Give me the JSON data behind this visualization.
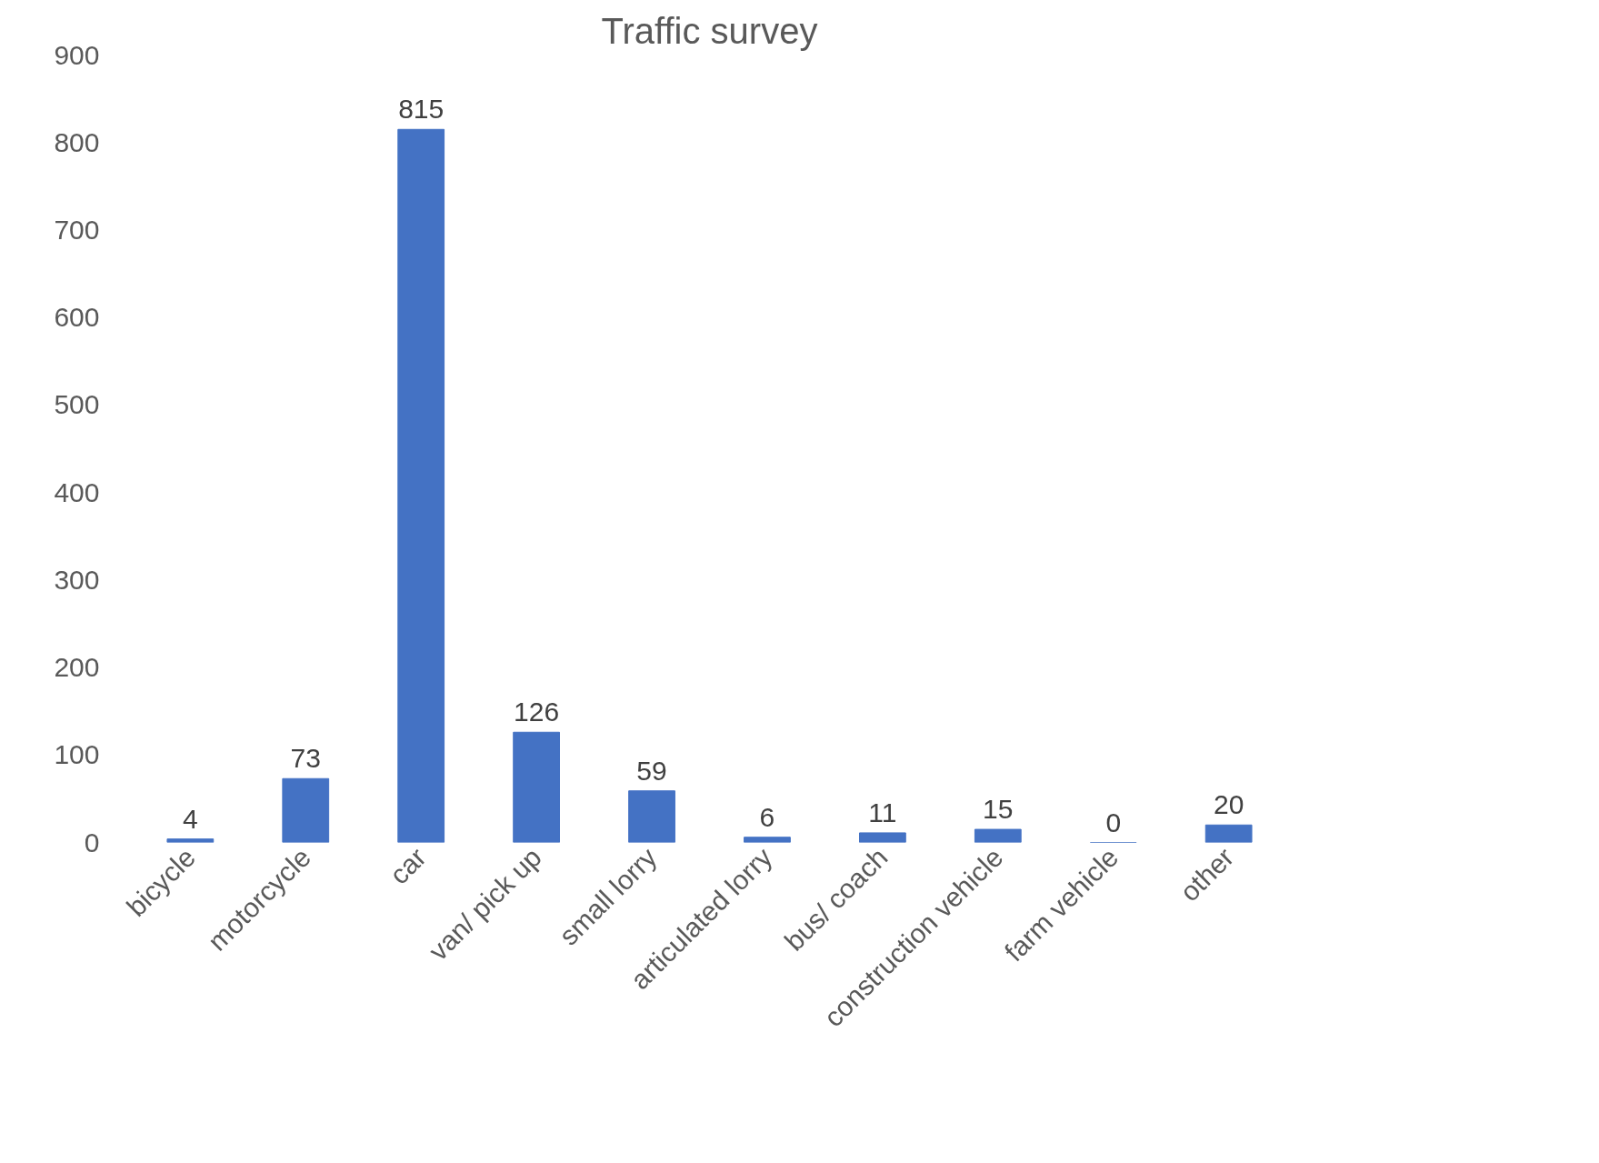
{
  "chart_data": {
    "type": "bar",
    "title": "Traffic survey",
    "categories": [
      "bicycle",
      "motorcycle",
      "car",
      "van/ pick up",
      "small lorry",
      "articulated lorry",
      "bus/ coach",
      "construction vehicle",
      "farm vehicle",
      "other"
    ],
    "values": [
      4,
      73,
      815,
      126,
      59,
      6,
      11,
      15,
      0,
      20
    ],
    "color": "#4472c4",
    "ylim": [
      0,
      900
    ],
    "yticks": [
      0,
      100,
      200,
      300,
      400,
      500,
      600,
      700,
      800,
      900
    ],
    "grid": false,
    "data_labels": true
  }
}
